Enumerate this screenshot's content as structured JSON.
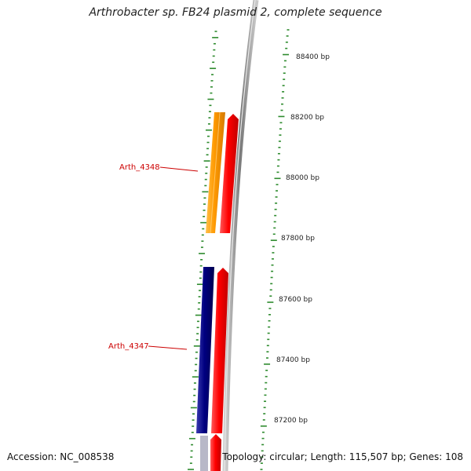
{
  "title": "Arthrobacter sp. FB24 plasmid 2, complete sequence",
  "accession": "Accession: NC_008538",
  "topology": "Topology: circular; Length: 115,507 bp; Genes: 108",
  "colors": {
    "backbone": "#8c8c8c",
    "ticks": "#2e8b2e",
    "gene_forward": "#ff0000",
    "gene_orange": "#ff9900",
    "gene_navy": "#000080",
    "label": "#cc0000"
  },
  "scale_labels": [
    "88400 bp",
    "88200 bp",
    "88000 bp",
    "87800 bp",
    "87600 bp",
    "87400 bp",
    "87200 bp"
  ],
  "genes": [
    {
      "label": "Arth_4348",
      "color_key": "gene_orange",
      "strand": "minus"
    },
    {
      "label": "",
      "color_key": "gene_forward",
      "strand": "plus"
    },
    {
      "label": "Arth_4347",
      "color_key": "gene_navy",
      "strand": "minus"
    },
    {
      "label": "",
      "color_key": "gene_forward",
      "strand": "plus"
    },
    {
      "label": "",
      "color_key": "gene_forward",
      "strand": "plus"
    }
  ]
}
